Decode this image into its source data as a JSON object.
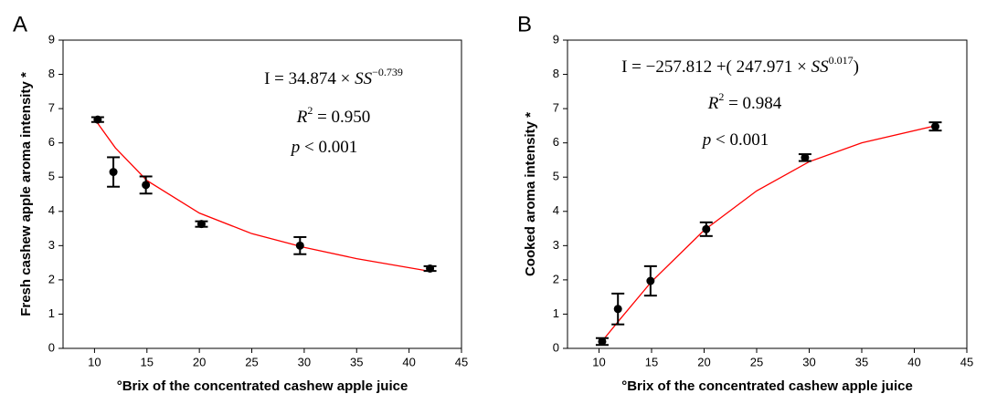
{
  "chart_data": [
    {
      "type": "scatter",
      "panel_label": "A",
      "x_label": "°Brix of the concentrated cashew apple juice",
      "y_label": "Fresh cashew apple aroma intensity *",
      "xlim": [
        7,
        45
      ],
      "xticks": [
        10,
        15,
        20,
        25,
        30,
        35,
        40,
        45
      ],
      "ylim": [
        0,
        9
      ],
      "yticks": [
        0,
        1,
        2,
        3,
        4,
        5,
        6,
        7,
        8,
        9
      ],
      "series": [
        {
          "color": "#000000",
          "x": [
            10.3,
            11.8,
            14.9,
            20.2,
            29.6,
            42
          ],
          "values": [
            6.68,
            5.15,
            4.77,
            3.63,
            3.0,
            2.33
          ],
          "errors": [
            0.07,
            0.43,
            0.25,
            0.08,
            0.25,
            0.07
          ]
        }
      ],
      "curves": [
        {
          "color": "#ff0000",
          "x": [
            10,
            12,
            15,
            20,
            25,
            30,
            35,
            42
          ],
          "values": [
            6.7,
            5.85,
            4.9,
            3.95,
            3.35,
            2.95,
            2.62,
            2.25
          ]
        }
      ],
      "annotations": [
        [
          {
            "t": "I = 34.874 × "
          },
          {
            "t": "SS",
            "italic": true
          },
          {
            "t": "−0.739",
            "sup": true
          }
        ],
        [
          {
            "t": "R",
            "italic": true
          },
          {
            "t": "2",
            "sup": true
          },
          {
            "t": " = 0.950"
          }
        ],
        [
          {
            "t": "p",
            "italic": true
          },
          {
            "t": " < 0.001"
          }
        ]
      ]
    },
    {
      "type": "scatter",
      "panel_label": "B",
      "x_label": "°Brix of the concentrated cashew apple juice",
      "y_label": "Cooked aroma intensity *",
      "xlim": [
        7,
        45
      ],
      "xticks": [
        10,
        15,
        20,
        25,
        30,
        35,
        40,
        45
      ],
      "ylim": [
        0,
        9
      ],
      "yticks": [
        0,
        1,
        2,
        3,
        4,
        5,
        6,
        7,
        8,
        9
      ],
      "series": [
        {
          "color": "#000000",
          "x": [
            10.3,
            11.8,
            14.9,
            20.2,
            29.6,
            42
          ],
          "values": [
            0.2,
            1.15,
            1.97,
            3.48,
            5.57,
            6.48
          ],
          "errors": [
            0.1,
            0.45,
            0.43,
            0.2,
            0.1,
            0.12
          ]
        }
      ],
      "curves": [
        {
          "color": "#ff0000",
          "x": [
            10,
            12,
            15,
            20,
            25,
            30,
            35,
            42
          ],
          "values": [
            0.1,
            0.85,
            1.95,
            3.45,
            4.6,
            5.45,
            6.0,
            6.5
          ]
        }
      ],
      "annotations": [
        [
          {
            "t": "I = −257.812 +( 247.971 × "
          },
          {
            "t": "SS",
            "italic": true
          },
          {
            "t": "0.017",
            "sup": true
          },
          {
            "t": ")"
          }
        ],
        [
          {
            "t": "R",
            "italic": true
          },
          {
            "t": "2",
            "sup": true
          },
          {
            "t": " = 0.984"
          }
        ],
        [
          {
            "t": "p",
            "italic": true
          },
          {
            "t": " < 0.001"
          }
        ]
      ]
    }
  ]
}
